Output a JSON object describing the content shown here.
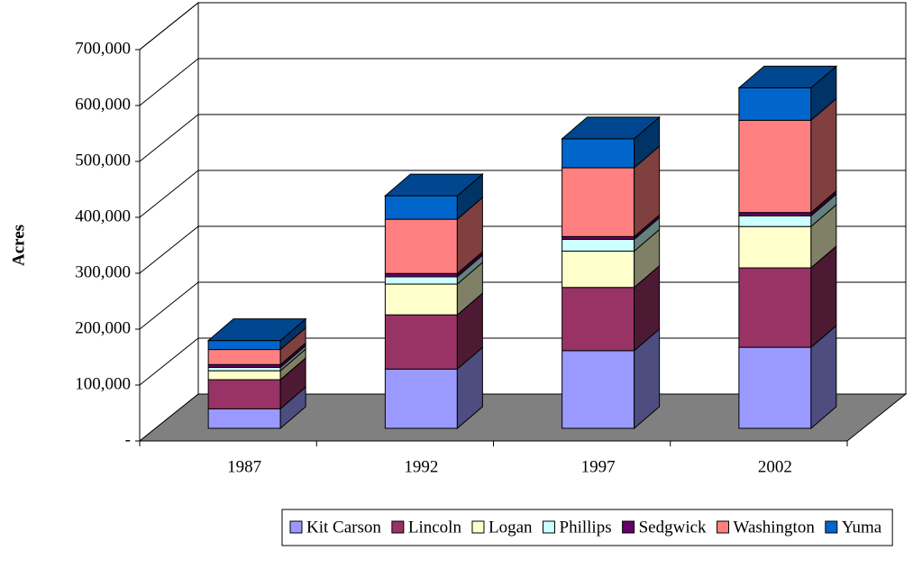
{
  "chart_data": {
    "type": "bar3d_stacked",
    "y_label": "Acres",
    "categories": [
      "1987",
      "1992",
      "1997",
      "2002"
    ],
    "series": [
      {
        "name": "Kit Carson",
        "color": "#9999ff",
        "values": [
          35000,
          106000,
          139000,
          145000
        ]
      },
      {
        "name": "Lincoln",
        "color": "#993366",
        "values": [
          52000,
          97000,
          113000,
          142000
        ]
      },
      {
        "name": "Logan",
        "color": "#ffffcc",
        "values": [
          16000,
          55000,
          65000,
          74000
        ]
      },
      {
        "name": "Phillips",
        "color": "#ccffff",
        "values": [
          6000,
          13000,
          21000,
          19000
        ]
      },
      {
        "name": "Sedgwick",
        "color": "#660066",
        "values": [
          5000,
          6000,
          5000,
          6000
        ]
      },
      {
        "name": "Washington",
        "color": "#ff8080",
        "values": [
          27000,
          97000,
          123000,
          165000
        ]
      },
      {
        "name": "Yuma",
        "color": "#0066cc",
        "values": [
          16000,
          42000,
          52000,
          58000
        ]
      }
    ],
    "ylim": [
      0,
      700000
    ],
    "yticks": [
      {
        "value": 0,
        "label": "-"
      },
      {
        "value": 100000,
        "label": "100,000"
      },
      {
        "value": 200000,
        "label": "200,000"
      },
      {
        "value": 300000,
        "label": "300,000"
      },
      {
        "value": 400000,
        "label": "400,000"
      },
      {
        "value": 500000,
        "label": "500,000"
      },
      {
        "value": 600000,
        "label": "600,000"
      },
      {
        "value": 700000,
        "label": "700,000"
      }
    ],
    "grid": true,
    "legend": "bottom"
  }
}
